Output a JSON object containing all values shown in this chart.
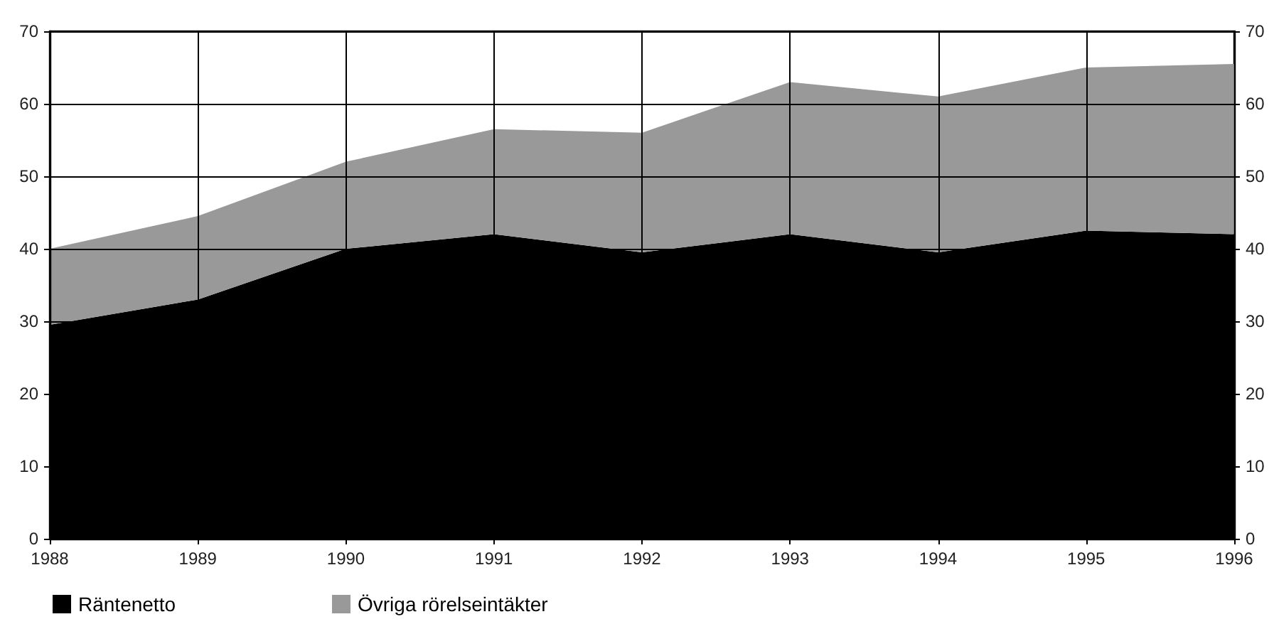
{
  "chart_data": {
    "type": "area",
    "stacked": true,
    "x": [
      1988,
      1989,
      1990,
      1991,
      1992,
      1993,
      1994,
      1995,
      1996
    ],
    "series": [
      {
        "name": "Räntenetto",
        "color": "#000000",
        "values": [
          29.5,
          33,
          40,
          42,
          39.5,
          42,
          39.5,
          42.5,
          42
        ]
      },
      {
        "name": "Övriga rörelseintäkter",
        "color": "#999999",
        "values": [
          10.5,
          11.5,
          12,
          14.5,
          16.5,
          21,
          21.5,
          22.5,
          23.5
        ]
      }
    ],
    "xlim": [
      1988,
      1996
    ],
    "xticks": [
      1988,
      1989,
      1990,
      1991,
      1992,
      1993,
      1994,
      1995,
      1996
    ],
    "ylim": [
      0,
      70
    ],
    "yticks": [
      0,
      10,
      20,
      30,
      40,
      50,
      60,
      70
    ],
    "y2lim": [
      0,
      70
    ],
    "y2ticks": [
      0,
      10,
      20,
      30,
      40,
      50,
      60,
      70
    ],
    "grid": true,
    "legend": "bottom left"
  }
}
